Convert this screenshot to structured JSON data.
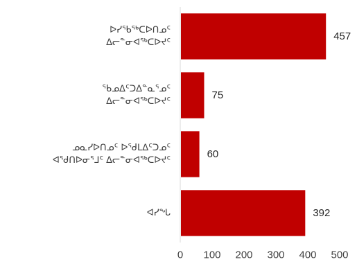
{
  "chart_data": {
    "type": "bar",
    "orientation": "horizontal",
    "categories": [
      [
        "ᐅᓯᖃᖅᑕᐅᑎᓄᑦ",
        "ᐃᓕᓐᓂᐊᖅᑕᐅᔪᑦ"
      ],
      [
        "ᖃᓄᐃᑦᑐᐃᓐᓇᕐᓄᑦ",
        "ᐃᓕᓐᓂᐊᖅᑕᐅᔪᑦ"
      ],
      [
        "ᓄᓇᓯᐅᑎᓄᑦ ᐅᖁᒪᐃᑦᑐᓄᑦ",
        "ᐊᖁᑎᐅᓂᕐᒧᑦ ᐃᓕᓐᓂᐊᖅᑕᐅᔪᑦ"
      ],
      [
        "ᐊᓯᖓ"
      ]
    ],
    "values": [
      457,
      75,
      60,
      392
    ],
    "xlim": [
      0,
      500
    ],
    "xticks": [
      "0",
      "100",
      "200",
      "300",
      "400",
      "500"
    ],
    "data_labels": [
      "457",
      "75",
      "60",
      "392"
    ],
    "bar_color": "#c00000",
    "axis_color": "#d9d9d9",
    "grid": false
  }
}
